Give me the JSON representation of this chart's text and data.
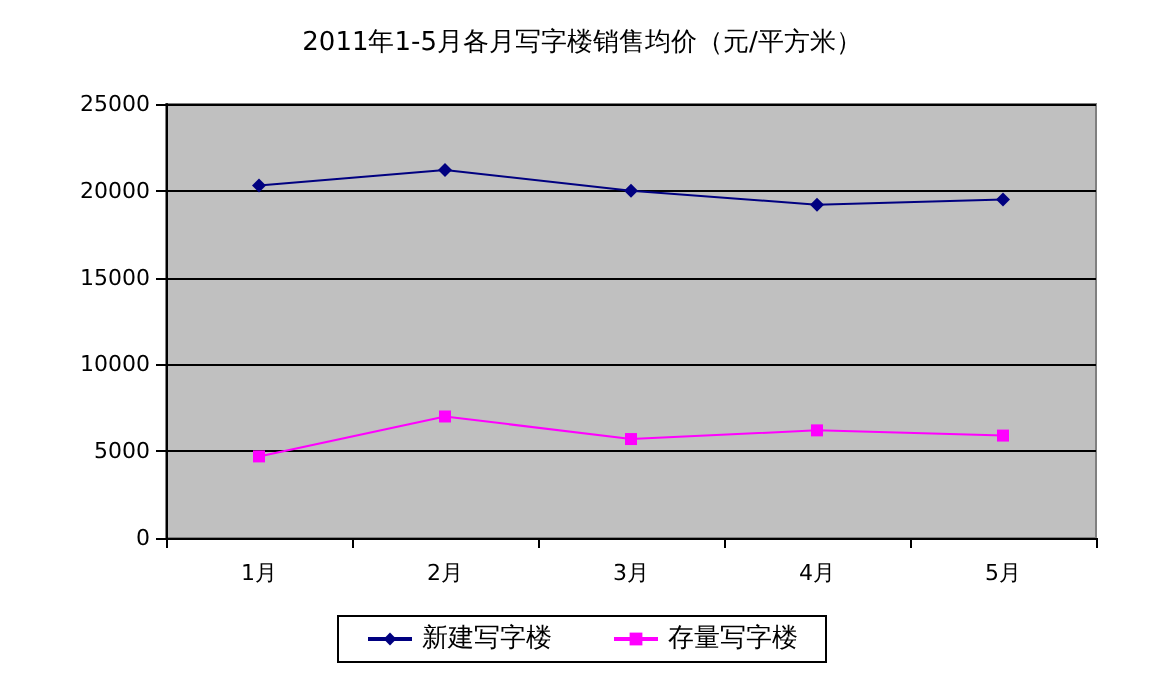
{
  "chart_data": {
    "type": "line",
    "title": "2011年1-5月各月写字楼销售均价（元/平方米）",
    "categories": [
      "1月",
      "2月",
      "3月",
      "4月",
      "5月"
    ],
    "series": [
      {
        "name": "新建写字楼",
        "color": "#000080",
        "marker": "diamond",
        "values": [
          20300,
          21200,
          20000,
          19200,
          19500
        ]
      },
      {
        "name": "存量写字楼",
        "color": "#ff00ff",
        "marker": "square",
        "values": [
          4700,
          7000,
          5700,
          6200,
          5900
        ]
      }
    ],
    "ylim": [
      0,
      25000
    ],
    "yticks": [
      0,
      5000,
      10000,
      15000,
      20000,
      25000
    ],
    "grid": "y",
    "legend": "bottom"
  }
}
